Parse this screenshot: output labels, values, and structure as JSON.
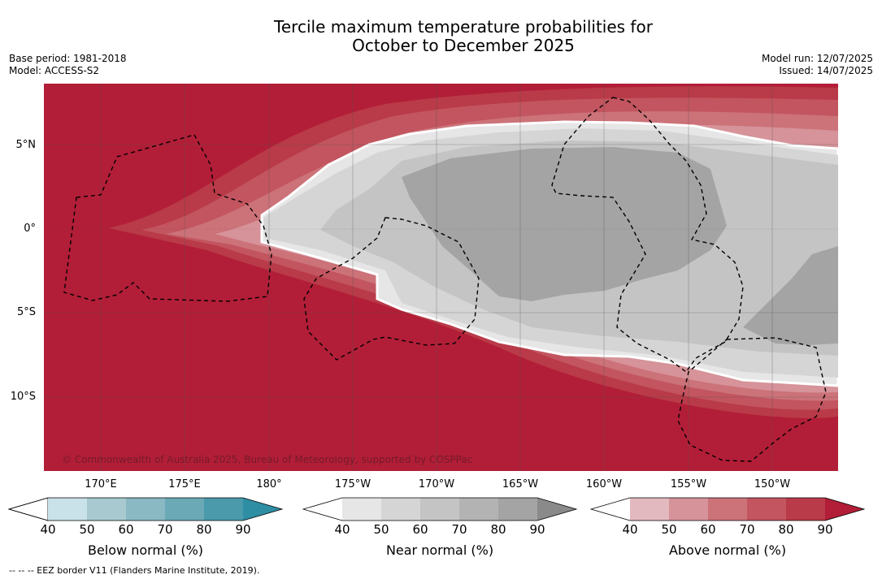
{
  "title_line1": "Tercile maximum temperature probabilities for",
  "title_line2": "October to December 2025",
  "base_period": "Base period: 1981-2018",
  "model": "Model: ACCESS-S2",
  "model_run": "Model run: 12/07/2025",
  "issued": "Issued: 14/07/2025",
  "copyright": "© Commonwealth of Australia 2025, Bureau of Meteorology, supported by COSPPac",
  "footnote": "-- -- -- EEZ border V11 (Flanders Marine Institute, 2019).",
  "lat_labels": [
    "5°N",
    "0°",
    "5°S",
    "10°S"
  ],
  "lon_labels": [
    "170°E",
    "175°E",
    "180°",
    "175°W",
    "170°W",
    "165°W",
    "160°W",
    "155°W",
    "150°W"
  ],
  "colorbars": [
    {
      "label": "Below normal (%)",
      "ticks": [
        "40",
        "50",
        "60",
        "70",
        "80",
        "90"
      ],
      "colors": [
        "#ffffff",
        "#c9e1e8",
        "#a7c9cf",
        "#8ab8c3",
        "#6ba9b6",
        "#4a9aab",
        "#2e8ea3"
      ]
    },
    {
      "label": "Near normal (%)",
      "ticks": [
        "40",
        "50",
        "60",
        "70",
        "80",
        "90"
      ],
      "colors": [
        "#ffffff",
        "#e6e6e6",
        "#d5d5d5",
        "#c4c4c4",
        "#b3b3b3",
        "#a4a4a4",
        "#8a8a8a"
      ]
    },
    {
      "label": "Above normal (%)",
      "ticks": [
        "40",
        "50",
        "60",
        "70",
        "80",
        "90"
      ],
      "colors": [
        "#ffffff",
        "#e2b9bf",
        "#d69399",
        "#cc7279",
        "#c2555f",
        "#b93a48",
        "#b21e37"
      ]
    }
  ],
  "colors": {
    "above_90": "#b21e37",
    "above_80": "#b93a48",
    "above_70": "#c2555f",
    "above_60": "#cc7279",
    "above_50": "#d69399",
    "near_50": "#e6e6e6",
    "near_60": "#d5d5d5",
    "near_70": "#c4c4c4",
    "near_80": "#a4a4a4"
  }
}
